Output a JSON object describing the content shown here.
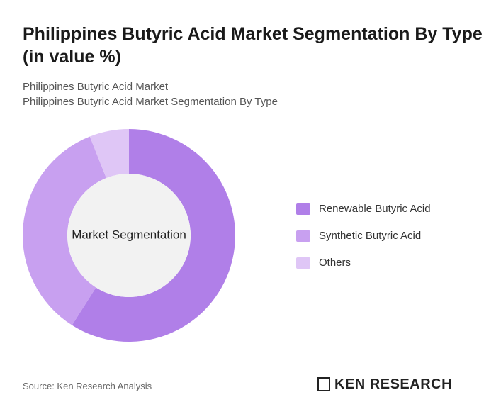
{
  "chart_data": {
    "type": "donut",
    "title": "Philippines Butyric Acid Market Segmentation By Type (in value %)",
    "subtitles": [
      "Philippines Butyric Acid Market",
      "Philippines Butyric Acid Market Segmentation By Type"
    ],
    "center_label": "Market Segmentation",
    "categories": [
      "Renewable Butyric Acid",
      "Synthetic Butyric Acid",
      "Others"
    ],
    "values": [
      59,
      35,
      6
    ],
    "colors": [
      "#b07fe8",
      "#c8a0f0",
      "#dfc6f6"
    ],
    "legend": "right"
  },
  "footer": {
    "source": "Source: Ken Research Analysis",
    "logo": "KEN RESEARCH"
  }
}
